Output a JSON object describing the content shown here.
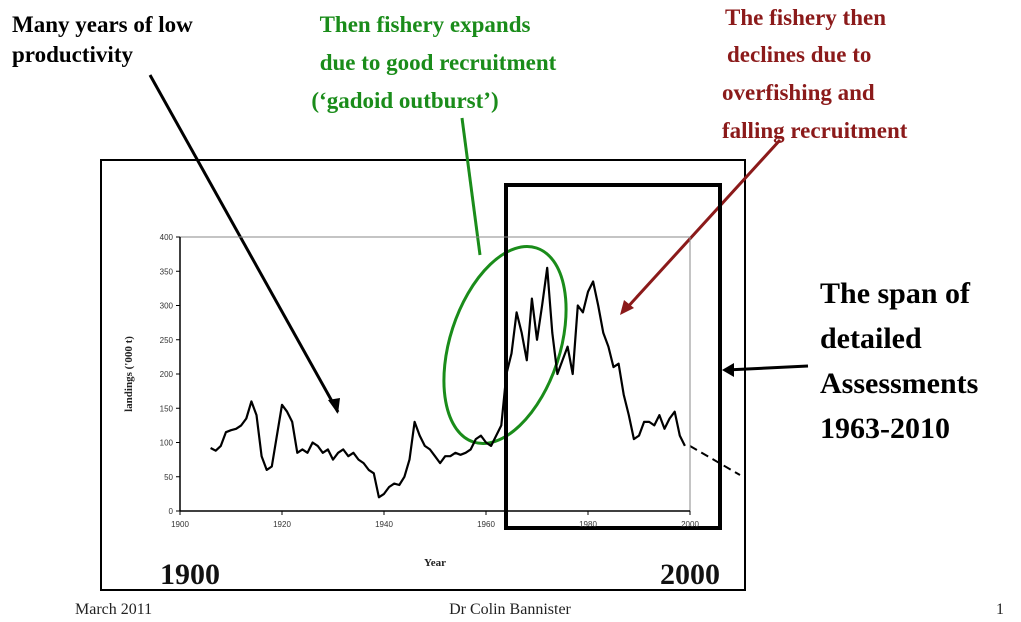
{
  "chart_data": {
    "type": "line",
    "x_label": "Year",
    "y_label": "landings ('000 t)",
    "x": [
      1906,
      1907,
      1908,
      1909,
      1910,
      1911,
      1912,
      1913,
      1914,
      1915,
      1916,
      1917,
      1918,
      1919,
      1920,
      1921,
      1922,
      1923,
      1924,
      1925,
      1926,
      1927,
      1928,
      1929,
      1930,
      1931,
      1932,
      1933,
      1934,
      1935,
      1936,
      1937,
      1938,
      1939,
      1940,
      1941,
      1942,
      1943,
      1944,
      1945,
      1946,
      1947,
      1948,
      1949,
      1950,
      1951,
      1952,
      1953,
      1954,
      1955,
      1956,
      1957,
      1958,
      1959,
      1960,
      1961,
      1962,
      1963,
      1964,
      1965,
      1966,
      1967,
      1968,
      1969,
      1970,
      1971,
      1972,
      1973,
      1974,
      1975,
      1976,
      1977,
      1978,
      1979,
      1980,
      1981,
      1982,
      1983,
      1984,
      1985,
      1986,
      1987,
      1988,
      1989,
      1990,
      1991,
      1992,
      1993,
      1994,
      1995,
      1996,
      1997,
      1998,
      1999
    ],
    "values": [
      92,
      88,
      95,
      115,
      118,
      120,
      125,
      135,
      160,
      140,
      80,
      60,
      65,
      110,
      155,
      145,
      130,
      85,
      90,
      85,
      100,
      95,
      85,
      90,
      75,
      85,
      90,
      80,
      85,
      75,
      70,
      60,
      55,
      20,
      25,
      35,
      40,
      38,
      50,
      75,
      130,
      110,
      95,
      90,
      80,
      70,
      80,
      80,
      85,
      82,
      85,
      90,
      105,
      110,
      100,
      95,
      110,
      125,
      200,
      230,
      290,
      260,
      220,
      310,
      250,
      300,
      355,
      260,
      200,
      220,
      240,
      200,
      300,
      290,
      320,
      335,
      300,
      260,
      240,
      210,
      215,
      170,
      140,
      105,
      110,
      130,
      130,
      125,
      140,
      120,
      135,
      145,
      110,
      95
    ],
    "color": "#000000",
    "xlim": [
      1900,
      2000
    ],
    "xticks": [
      1900,
      1920,
      1940,
      1960,
      1980,
      2000
    ],
    "ylim": [
      0,
      400
    ],
    "yticks": [
      0,
      50,
      100,
      150,
      200,
      250,
      300,
      350,
      400
    ]
  },
  "annotations": [
    [
      "Many years of low",
      "productivity"
    ],
    [
      "Then fishery expands",
      "due to good recruitment",
      "(‘gadoid outburst’)"
    ],
    [
      "The fishery then",
      "declines due  to",
      "overfishing and",
      "falling recruitment"
    ],
    [
      "The span of",
      "detailed",
      "Assessments",
      "1963-2010"
    ]
  ],
  "period_labels": [
    "1900",
    "2000"
  ],
  "footer": {
    "date": "March 2011",
    "author": "Dr Colin Bannister",
    "page": "1"
  }
}
